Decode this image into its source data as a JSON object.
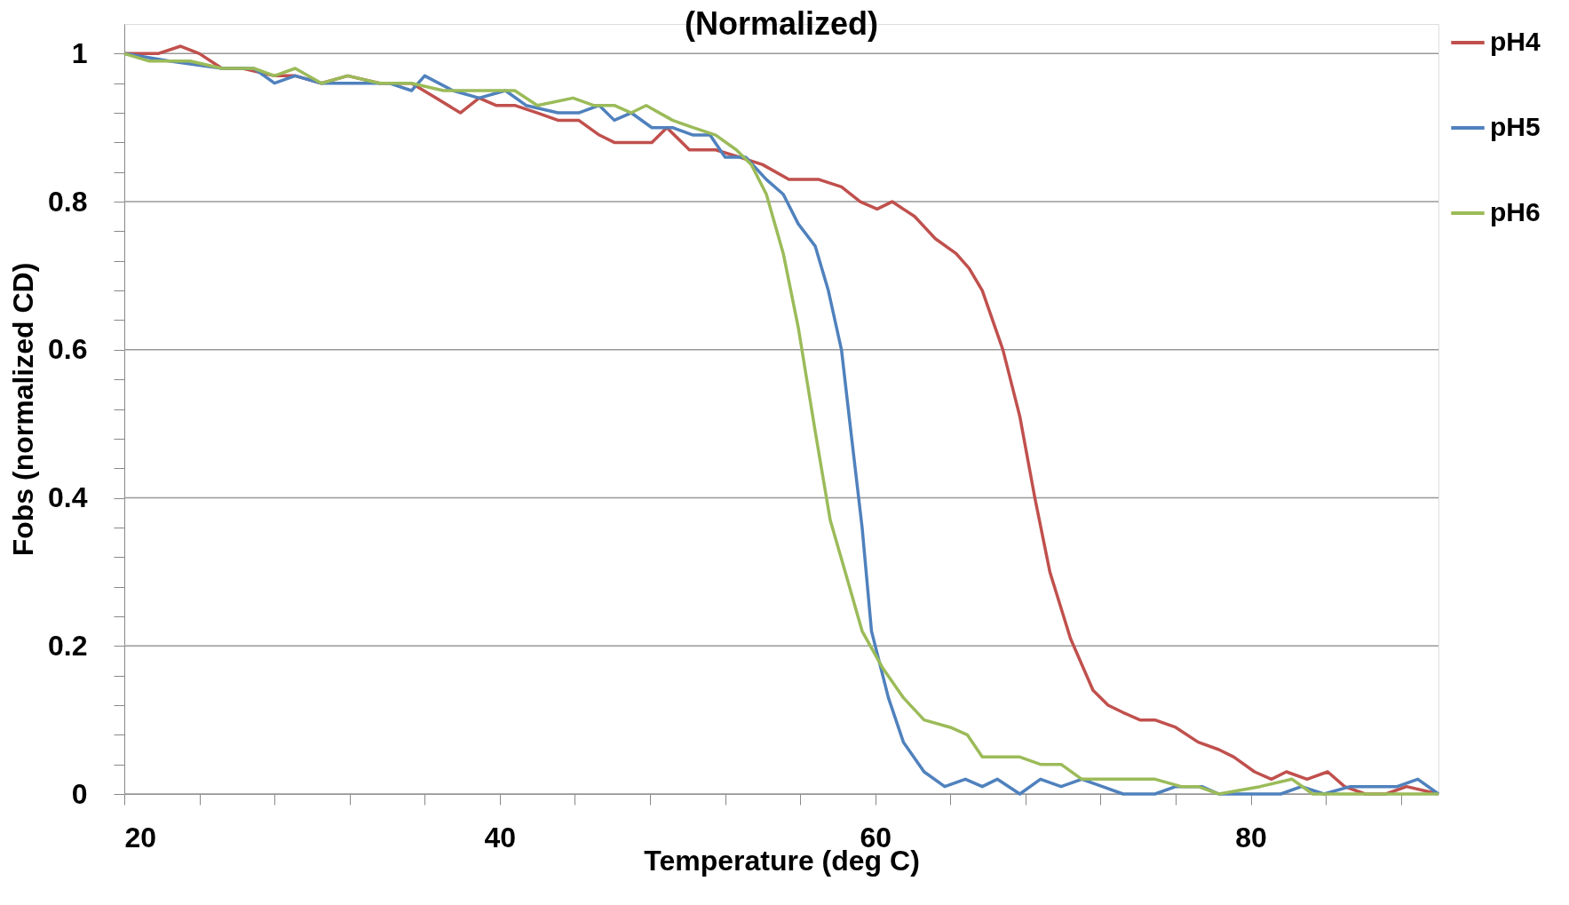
{
  "chart_data": {
    "type": "line",
    "title": "(Normalized)",
    "xlabel": "Temperature (deg C)",
    "ylabel": "Fobs (normalized CD)",
    "xlim": [
      20,
      90
    ],
    "ylim": [
      0,
      1.04
    ],
    "xticks": [
      20,
      {
        "value": 24,
        "label": null
      },
      {
        "value": 28,
        "label": null
      },
      {
        "value": 32,
        "label": null
      },
      {
        "value": 36,
        "label": null
      },
      40,
      {
        "value": 44,
        "label": null
      },
      {
        "value": 48,
        "label": null
      },
      {
        "value": 52,
        "label": null
      },
      {
        "value": 56,
        "label": null
      },
      60,
      {
        "value": 64,
        "label": null
      },
      {
        "value": 68,
        "label": null
      },
      {
        "value": 72,
        "label": null
      },
      {
        "value": 76,
        "label": null
      },
      80,
      {
        "value": 84,
        "label": null
      },
      {
        "value": 88,
        "label": null
      }
    ],
    "yticks": [
      0,
      {
        "value": 0.04,
        "label": null
      },
      {
        "value": 0.08,
        "label": null
      },
      {
        "value": 0.12,
        "label": null
      },
      {
        "value": 0.16,
        "label": null
      },
      0.2,
      {
        "value": 0.24,
        "label": null
      },
      {
        "value": 0.28,
        "label": null
      },
      {
        "value": 0.32,
        "label": null
      },
      {
        "value": 0.36,
        "label": null
      },
      0.4,
      {
        "value": 0.44,
        "label": null
      },
      {
        "value": 0.48,
        "label": null
      },
      {
        "value": 0.52,
        "label": null
      },
      {
        "value": 0.56,
        "label": null
      },
      0.6,
      {
        "value": 0.64,
        "label": null
      },
      {
        "value": 0.68,
        "label": null
      },
      {
        "value": 0.72,
        "label": null
      },
      {
        "value": 0.76,
        "label": null
      },
      0.8,
      {
        "value": 0.84,
        "label": null
      },
      {
        "value": 0.88,
        "label": null
      },
      {
        "value": 0.92,
        "label": null
      },
      {
        "value": 0.96,
        "label": null
      },
      1
    ],
    "grid": "y",
    "legend": "right",
    "marker": "none",
    "line_style": "solid",
    "series": [
      {
        "name": "pH4",
        "color": "#c0504d",
        "x": [
          20,
          21,
          21.8,
          23,
          24,
          25.2,
          26.3,
          28,
          29.1,
          30.5,
          31.9,
          33.6,
          35.3,
          36.6,
          37.9,
          38.9,
          39.8,
          40.8,
          42,
          43.1,
          44.2,
          45.3,
          46.1,
          47,
          48.1,
          48.9,
          50.1,
          51.5,
          52.8,
          54,
          55.4,
          56.2,
          57,
          58.2,
          59.2,
          60.1,
          60.9,
          62.1,
          63.2,
          64.3,
          65,
          65.7,
          66.8,
          67.7,
          68.5,
          69.3,
          70.4,
          71.6,
          72.4,
          73.2,
          74.1,
          74.9,
          76,
          77.2,
          78.3,
          79.1,
          80.2,
          81.1,
          81.9,
          83,
          84.1,
          85,
          86.1,
          87.2,
          88.3,
          90
        ],
        "values": [
          1,
          1.0,
          1.0,
          1.01,
          1.0,
          0.98,
          0.98,
          0.97,
          0.97,
          0.96,
          0.97,
          0.96,
          0.96,
          0.94,
          0.92,
          0.94,
          0.93,
          0.93,
          0.92,
          0.91,
          0.91,
          0.89,
          0.88,
          0.88,
          0.88,
          0.9,
          0.87,
          0.87,
          0.86,
          0.85,
          0.83,
          0.83,
          0.83,
          0.82,
          0.8,
          0.79,
          0.8,
          0.78,
          0.75,
          0.73,
          0.71,
          0.68,
          0.6,
          0.51,
          0.4,
          0.3,
          0.21,
          0.14,
          0.12,
          0.11,
          0.1,
          0.1,
          0.09,
          0.07,
          0.06,
          0.05,
          0.03,
          0.02,
          0.03,
          0.02,
          0.03,
          0.01,
          0,
          0,
          0.01,
          0
        ]
      },
      {
        "name": "pH5",
        "color": "#4f81bd",
        "x": [
          20,
          22.4,
          25.2,
          26.9,
          28,
          29.1,
          30.5,
          32.5,
          34.1,
          35.3,
          36,
          37.5,
          38.9,
          40.3,
          41.4,
          43.1,
          44.2,
          45.3,
          46.1,
          47,
          48.1,
          49.2,
          50.3,
          51.2,
          52,
          53.1,
          54.2,
          55.1,
          55.9,
          56.8,
          57.5,
          58.2,
          58.7,
          59.3,
          59.8,
          60.7,
          61.5,
          62.6,
          63.7,
          64.8,
          65.7,
          66.5,
          67.7,
          68.8,
          69.9,
          71,
          72.1,
          73.2,
          74.9,
          76,
          77.4,
          78.3,
          81.6,
          82.7,
          83.9,
          85.3,
          86.4,
          87.8,
          88.9,
          90
        ],
        "values": [
          1,
          0.99,
          0.98,
          0.98,
          0.96,
          0.97,
          0.96,
          0.96,
          0.96,
          0.95,
          0.97,
          0.95,
          0.94,
          0.95,
          0.93,
          0.92,
          0.92,
          0.93,
          0.91,
          0.92,
          0.9,
          0.9,
          0.89,
          0.89,
          0.86,
          0.86,
          0.83,
          0.81,
          0.77,
          0.74,
          0.68,
          0.6,
          0.49,
          0.36,
          0.22,
          0.13,
          0.07,
          0.03,
          0.01,
          0.02,
          0.01,
          0.02,
          0,
          0.02,
          0.01,
          0.02,
          0.01,
          0,
          0,
          0.01,
          0.01,
          0,
          0,
          0.01,
          0,
          0.01,
          0.01,
          0.01,
          0.02,
          0
        ]
      },
      {
        "name": "pH6",
        "color": "#9bbb59",
        "x": [
          20,
          21.3,
          23.5,
          25.2,
          26.9,
          28,
          29.1,
          30.5,
          31.9,
          33.6,
          35.3,
          37,
          38,
          39.7,
          40.8,
          42,
          43.9,
          45,
          46.1,
          47,
          47.8,
          49.2,
          50.3,
          51.5,
          52.6,
          53.4,
          54.2,
          55.1,
          55.9,
          56.8,
          57.6,
          58.4,
          59.3,
          60.4,
          61.5,
          62.6,
          64,
          64.9,
          65.7,
          66.5,
          67.7,
          68.8,
          69.9,
          71,
          72.1,
          73.2,
          74.9,
          76.3,
          77.2,
          78.3,
          80.5,
          82.2,
          83.3,
          90
        ],
        "values": [
          1,
          0.99,
          0.99,
          0.98,
          0.98,
          0.97,
          0.98,
          0.96,
          0.97,
          0.96,
          0.96,
          0.95,
          0.95,
          0.95,
          0.95,
          0.93,
          0.94,
          0.93,
          0.93,
          0.92,
          0.93,
          0.91,
          0.9,
          0.89,
          0.87,
          0.85,
          0.81,
          0.73,
          0.63,
          0.49,
          0.37,
          0.3,
          0.22,
          0.17,
          0.13,
          0.1,
          0.09,
          0.08,
          0.05,
          0.05,
          0.05,
          0.04,
          0.04,
          0.02,
          0.02,
          0.02,
          0.02,
          0.01,
          0.01,
          0,
          0.01,
          0.02,
          0,
          0
        ]
      }
    ]
  }
}
